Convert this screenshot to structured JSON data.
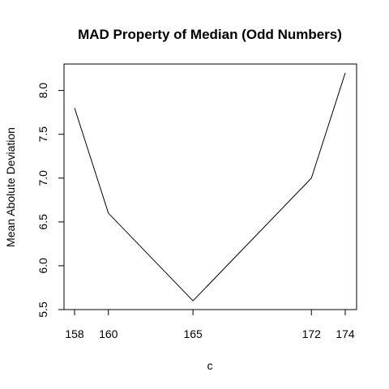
{
  "chart_data": {
    "type": "line",
    "title": "MAD Property of Median (Odd Numbers)",
    "xlabel": "c",
    "ylabel": "Mean Abolute Deviation",
    "x": [
      158,
      160,
      165,
      172,
      174
    ],
    "y": [
      7.8,
      6.6,
      5.6,
      7.0,
      8.2
    ],
    "xticks": [
      158,
      160,
      165,
      172,
      174
    ],
    "yticks": [
      5.5,
      6.0,
      6.5,
      7.0,
      7.5,
      8.0
    ],
    "ytick_labels": [
      "5.5",
      "6.0",
      "6.5",
      "7.0",
      "7.5",
      "8.0"
    ],
    "xlim": [
      158,
      174
    ],
    "ylim": [
      5.5,
      8.2
    ],
    "grid": false,
    "line_color": "#000000"
  }
}
